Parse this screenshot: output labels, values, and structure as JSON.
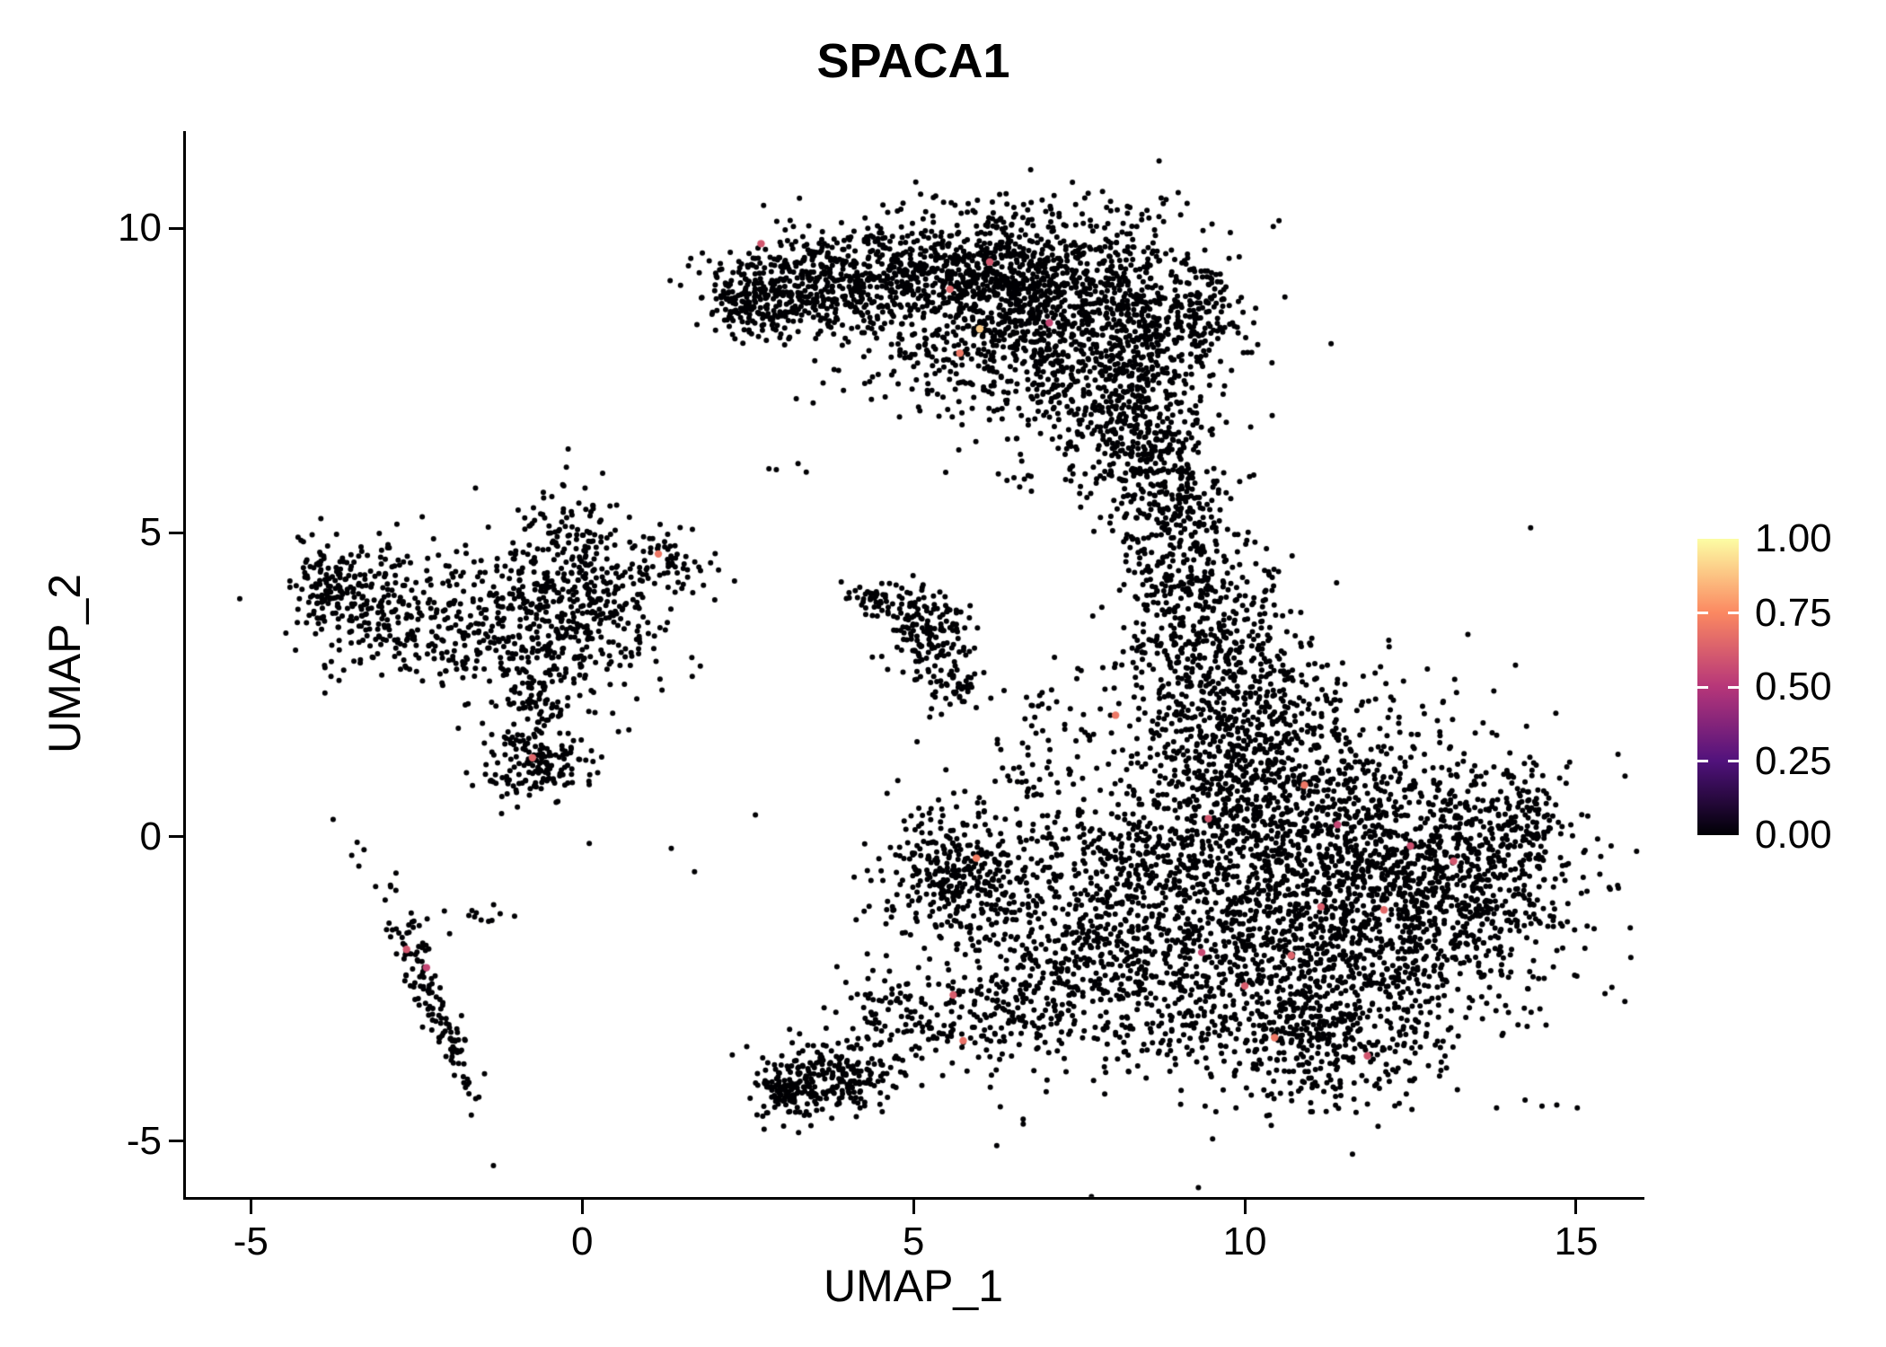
{
  "title": "SPACA1",
  "legend": {
    "tick_labels": [
      "1.00",
      "0.75",
      "0.50",
      "0.25",
      "0.00"
    ],
    "tick_values": [
      1,
      0.75,
      0.5,
      0.25,
      0
    ],
    "gradient_stops": [
      {
        "value": 0,
        "color": "#000004"
      },
      {
        "value": 0.25,
        "color": "#51127C"
      },
      {
        "value": 0.5,
        "color": "#B63679"
      },
      {
        "value": 0.75,
        "color": "#FB8861"
      },
      {
        "value": 1,
        "color": "#FCFDA4"
      }
    ]
  },
  "chart_data": {
    "type": "scatter",
    "title": "SPACA1",
    "xlabel": "UMAP_1",
    "ylabel": "UMAP_2",
    "xlim": [
      -5.98,
      15.99
    ],
    "ylim": [
      -5.92,
      11.6
    ],
    "x_ticks": [
      {
        "value": -5,
        "label": "-5"
      },
      {
        "value": 0,
        "label": "0"
      },
      {
        "value": 5,
        "label": "5"
      },
      {
        "value": 10,
        "label": "10"
      },
      {
        "value": 15,
        "label": "15"
      }
    ],
    "y_ticks": [
      {
        "value": -5,
        "label": "-5"
      },
      {
        "value": 0,
        "label": "0"
      },
      {
        "value": 5,
        "label": "5"
      },
      {
        "value": 10,
        "label": "10"
      }
    ],
    "grid": false,
    "legend_position": "right",
    "point_color": "#000004",
    "point_radius": 3.0,
    "highlight_radius": 4.2,
    "description": "UMAP feature plot of SPACA1 expression; nearly all cells have expression 0 (black), a few scattered cells show values ~0.5-0.9 (magma colour scale).",
    "clusters": [
      {
        "x": 7.4,
        "y": 8.8,
        "sx": 1.15,
        "sy": 0.8,
        "n": 900
      },
      {
        "x": 6.0,
        "y": 9.2,
        "sx": 0.85,
        "sy": 0.55,
        "n": 500
      },
      {
        "x": 4.3,
        "y": 9.25,
        "sx": 0.75,
        "sy": 0.42,
        "n": 380
      },
      {
        "x": 3.0,
        "y": 8.95,
        "sx": 0.55,
        "sy": 0.38,
        "n": 260
      },
      {
        "x": 2.45,
        "y": 8.75,
        "sx": 0.28,
        "sy": 0.25,
        "n": 90
      },
      {
        "x": 8.3,
        "y": 7.3,
        "sx": 0.62,
        "sy": 0.85,
        "n": 420
      },
      {
        "x": 8.55,
        "y": 6.1,
        "sx": 0.4,
        "sy": 0.55,
        "n": 160
      },
      {
        "x": 5.2,
        "y": 8.05,
        "sx": 1.1,
        "sy": 0.65,
        "n": 130
      },
      {
        "x": 6.8,
        "y": 7.6,
        "sx": 0.7,
        "sy": 0.6,
        "n": 150
      },
      {
        "x": 9.3,
        "y": 8.6,
        "sx": 0.3,
        "sy": 0.5,
        "n": 80
      },
      {
        "x": 9.0,
        "y": 5.2,
        "sx": 0.38,
        "sy": 0.75,
        "n": 160
      },
      {
        "x": 9.3,
        "y": 3.9,
        "sx": 0.55,
        "sy": 0.85,
        "n": 280
      },
      {
        "x": 11.3,
        "y": -1.1,
        "sx": 1.55,
        "sy": 1.15,
        "n": 1500
      },
      {
        "x": 10.3,
        "y": 0.9,
        "sx": 1.15,
        "sy": 0.95,
        "n": 650
      },
      {
        "x": 9.7,
        "y": 2.4,
        "sx": 0.75,
        "sy": 0.85,
        "n": 380
      },
      {
        "x": 13.2,
        "y": -0.6,
        "sx": 0.85,
        "sy": 0.85,
        "n": 480
      },
      {
        "x": 14.2,
        "y": 0.2,
        "sx": 0.35,
        "sy": 0.5,
        "n": 110
      },
      {
        "x": 10.9,
        "y": -3.1,
        "sx": 1.15,
        "sy": 0.65,
        "n": 480
      },
      {
        "x": 8.7,
        "y": -1.4,
        "sx": 0.6,
        "sy": 1.0,
        "n": 260
      },
      {
        "x": 10.6,
        "y": -0.2,
        "sx": 2.3,
        "sy": 2.1,
        "n": 240
      },
      {
        "x": -0.45,
        "y": 3.6,
        "sx": 0.85,
        "sy": 0.65,
        "n": 430
      },
      {
        "x": -3.25,
        "y": 3.85,
        "sx": 0.55,
        "sy": 0.5,
        "n": 240
      },
      {
        "x": -3.85,
        "y": 4.25,
        "sx": 0.2,
        "sy": 0.25,
        "n": 50
      },
      {
        "x": -1.9,
        "y": 3.3,
        "sx": 0.65,
        "sy": 0.45,
        "n": 130
      },
      {
        "x": -0.2,
        "y": 5.0,
        "sx": 0.45,
        "sy": 0.55,
        "n": 90
      },
      {
        "x": -0.7,
        "y": 2.2,
        "sx": 0.3,
        "sy": 0.55,
        "n": 120
      },
      {
        "x": -0.65,
        "y": 1.15,
        "sx": 0.42,
        "sy": 0.28,
        "n": 130
      },
      {
        "x": 0.7,
        "y": 4.3,
        "sx": 0.55,
        "sy": 0.4,
        "n": 70
      },
      {
        "x": 1.35,
        "y": 4.55,
        "sx": 0.25,
        "sy": 0.2,
        "n": 30
      },
      {
        "x": 5.25,
        "y": 3.25,
        "sx": 0.28,
        "sy": 0.38,
        "n": 130
      },
      {
        "x": 4.85,
        "y": 3.8,
        "sx": 0.3,
        "sy": 0.2,
        "n": 50
      },
      {
        "x": 4.35,
        "y": 3.95,
        "sx": 0.2,
        "sy": 0.13,
        "n": 30
      },
      {
        "x": 5.7,
        "y": 2.55,
        "sx": 0.18,
        "sy": 0.3,
        "n": 40,
        "rot": -30
      },
      {
        "x": 5.6,
        "y": -0.55,
        "sx": 0.5,
        "sy": 0.55,
        "n": 300
      },
      {
        "x": 6.3,
        "y": -1.4,
        "sx": 0.8,
        "sy": 0.8,
        "n": 160
      },
      {
        "x": 4.9,
        "y": -3.0,
        "sx": 0.55,
        "sy": 0.45,
        "n": 130
      },
      {
        "x": 3.8,
        "y": -3.95,
        "sx": 0.5,
        "sy": 0.3,
        "n": 210
      },
      {
        "x": 3.1,
        "y": -4.15,
        "sx": 0.25,
        "sy": 0.22,
        "n": 90
      },
      {
        "x": 6.7,
        "y": -2.7,
        "sx": 0.5,
        "sy": 0.6,
        "n": 160
      },
      {
        "x": 7.4,
        "y": -1.9,
        "sx": 0.4,
        "sy": 0.5,
        "n": 90
      },
      {
        "x": 7.0,
        "y": 0.5,
        "sx": 0.45,
        "sy": 0.9,
        "n": 90
      },
      {
        "x": 8.0,
        "y": -0.6,
        "sx": 0.5,
        "sy": 0.8,
        "n": 90
      },
      {
        "x": 8.3,
        "y": -2.6,
        "sx": 0.5,
        "sy": 0.6,
        "n": 90
      },
      {
        "x": -2.25,
        "y": -2.7,
        "sx": 0.13,
        "sy": 1.05,
        "n": 140,
        "rot": 22
      },
      {
        "x": -1.9,
        "y": -1.35,
        "sx": 0.5,
        "sy": 0.18,
        "n": 14
      },
      {
        "x": 6.6,
        "y": 5.9,
        "sx": 0.15,
        "sy": 0.15,
        "n": 8
      },
      {
        "x": 6.9,
        "y": 2.25,
        "sx": 0.2,
        "sy": 0.15,
        "n": 12
      },
      {
        "x": 3.1,
        "y": 6.0,
        "sx": 0.3,
        "sy": 0.2,
        "n": 4
      },
      {
        "x": 1.3,
        "y": 0.4,
        "sx": 1.2,
        "sy": 0.8,
        "n": 5
      }
    ],
    "highlights": [
      {
        "x": 1.15,
        "y": 4.65,
        "value": 0.7
      },
      {
        "x": -0.75,
        "y": 1.3,
        "value": 0.65
      },
      {
        "x": 2.7,
        "y": 9.75,
        "value": 0.6
      },
      {
        "x": 5.55,
        "y": 9.0,
        "value": 0.65
      },
      {
        "x": 6.15,
        "y": 9.45,
        "value": 0.6
      },
      {
        "x": 6.0,
        "y": 8.35,
        "value": 0.9
      },
      {
        "x": 5.7,
        "y": 7.95,
        "value": 0.7
      },
      {
        "x": 8.05,
        "y": 2.0,
        "value": 0.7
      },
      {
        "x": 5.95,
        "y": -0.35,
        "value": 0.72
      },
      {
        "x": 5.6,
        "y": -2.6,
        "value": 0.62
      },
      {
        "x": 5.75,
        "y": -3.35,
        "value": 0.68
      },
      {
        "x": -2.65,
        "y": -1.85,
        "value": 0.6
      },
      {
        "x": -2.35,
        "y": -2.15,
        "value": 0.55
      },
      {
        "x": 10.9,
        "y": 0.85,
        "value": 0.7
      },
      {
        "x": 11.15,
        "y": -1.15,
        "value": 0.62
      },
      {
        "x": 12.1,
        "y": -1.2,
        "value": 0.66
      },
      {
        "x": 11.85,
        "y": -3.6,
        "value": 0.6
      },
      {
        "x": 10.45,
        "y": -3.3,
        "value": 0.7
      },
      {
        "x": 13.15,
        "y": -0.4,
        "value": 0.6
      },
      {
        "x": 9.35,
        "y": -1.9,
        "value": 0.56
      },
      {
        "x": 10.0,
        "y": -2.45,
        "value": 0.62
      },
      {
        "x": 12.5,
        "y": -0.15,
        "value": 0.58
      },
      {
        "x": 10.7,
        "y": -1.95,
        "value": 0.64
      },
      {
        "x": 7.05,
        "y": 8.45,
        "value": 0.55
      },
      {
        "x": 9.45,
        "y": 0.3,
        "value": 0.6
      },
      {
        "x": 11.4,
        "y": 0.2,
        "value": 0.55
      }
    ]
  }
}
